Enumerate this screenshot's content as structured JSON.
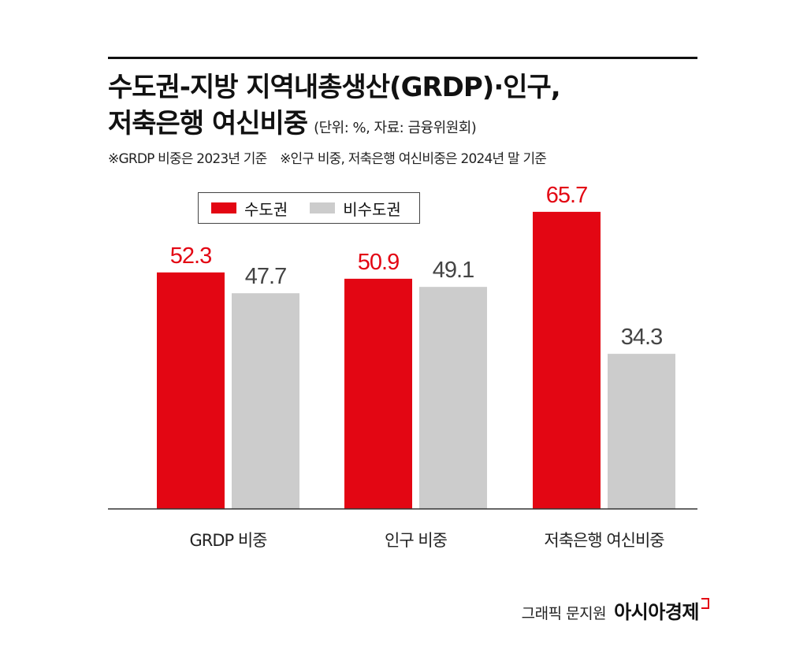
{
  "header": {
    "title_line1": "수도권-지방 지역내총생산(GRDP)·인구,",
    "title_line2": "저축은행 여신비중",
    "unit_source": "(단위: %, 자료: 금융위원회)",
    "note1": "※GRDP 비중은 2023년 기준",
    "note2": "※인구 비중, 저축은행 여신비중은 2024년 말 기준"
  },
  "legend": {
    "series1": "수도권",
    "series2": "비수도권"
  },
  "footer": {
    "credit": "그래픽 문지원",
    "brand": "아시아경제"
  },
  "colors": {
    "capital": "#e30613",
    "non_capital": "#cccccc",
    "capital_label": "#e30613",
    "non_capital_label": "#444444"
  },
  "chart_data": {
    "type": "bar",
    "categories": [
      "GRDP 비중",
      "인구 비중",
      "저축은행 여신비중"
    ],
    "series": [
      {
        "name": "수도권",
        "values": [
          52.3,
          50.9,
          65.7
        ]
      },
      {
        "name": "비수도권",
        "values": [
          47.7,
          49.1,
          34.3
        ]
      }
    ],
    "ylim": [
      0,
      100
    ],
    "unit": "%",
    "grid": false,
    "legend_position": "top-left",
    "data_labels": true
  }
}
